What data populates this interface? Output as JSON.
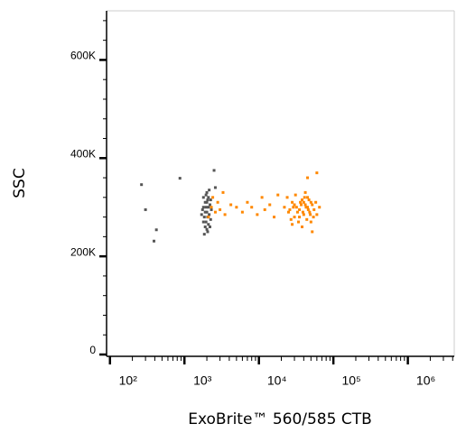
{
  "chart_data": {
    "type": "scatter",
    "xlabel": "ExoBrite™ 560/585 CTB",
    "ylabel": "SSC",
    "xscale": "log",
    "xlim": [
      90,
      4200000
    ],
    "ylim": [
      0,
      700000
    ],
    "xticks": [
      {
        "value": 100,
        "label": "10²"
      },
      {
        "value": 1000,
        "label": "10³"
      },
      {
        "value": 10000,
        "label": "10⁴"
      },
      {
        "value": 100000,
        "label": "10⁵"
      },
      {
        "value": 1000000,
        "label": "10⁶"
      }
    ],
    "xminorticks": [
      200,
      300,
      400,
      500,
      600,
      700,
      800,
      900,
      2000,
      3000,
      4000,
      5000,
      6000,
      7000,
      8000,
      9000,
      20000,
      30000,
      40000,
      50000,
      60000,
      70000,
      80000,
      90000,
      200000,
      300000,
      400000,
      500000,
      600000,
      700000,
      800000,
      900000,
      2000000,
      3000000,
      4000000
    ],
    "yticks": [
      {
        "value": 0,
        "label": "0"
      },
      {
        "value": 200000,
        "label": "200K"
      },
      {
        "value": 400000,
        "label": "400K"
      },
      {
        "value": 600000,
        "label": "600K"
      }
    ],
    "yminorticks": [
      40000,
      80000,
      120000,
      160000,
      240000,
      280000,
      320000,
      360000,
      440000,
      480000,
      520000,
      560000,
      640000,
      680000
    ],
    "series": [
      {
        "color": "#555555",
        "x": [
          1800,
          1900,
          2000,
          2100,
          1950,
          2050,
          1850,
          2200,
          1750,
          2000,
          2150,
          1900,
          2050,
          1800,
          2250,
          1950,
          2100,
          1850,
          2000,
          2300,
          1700,
          2150,
          1900,
          2050,
          2200,
          1950,
          2000,
          1800,
          2100,
          2250,
          265,
          300,
          420,
          390,
          870,
          2500,
          2600
        ],
        "values": [
          300000,
          310000,
          290000,
          320000,
          270000,
          250000,
          280000,
          305000,
          295000,
          330000,
          285000,
          260000,
          315000,
          320000,
          275000,
          300000,
          265000,
          245000,
          310000,
          295000,
          285000,
          335000,
          290000,
          280000,
          260000,
          325000,
          255000,
          270000,
          300000,
          315000,
          346000,
          295000,
          254000,
          231000,
          359000,
          375000,
          340000
        ]
      },
      {
        "color": "#ff8800",
        "x": [
          2300,
          2600,
          3000,
          3500,
          4200,
          5000,
          6000,
          7000,
          8000,
          9500,
          11000,
          12000,
          14000,
          16000,
          18000,
          2100,
          2400,
          2800,
          3300,
          22000,
          25000,
          28000,
          30000,
          32000,
          35000,
          38000,
          40000,
          42000,
          45000,
          48000,
          50000,
          55000,
          60000,
          65000,
          24000,
          27000,
          31000,
          34000,
          37000,
          41000,
          44000,
          47000,
          52000,
          58000,
          26000,
          29000,
          33000,
          36000,
          39000,
          43000,
          46000,
          49000,
          54000,
          30000,
          35000,
          40000,
          45000,
          50000,
          28000,
          38000,
          42000,
          60000,
          45000,
          52000
        ],
        "values": [
          300000,
          290000,
          295000,
          285000,
          305000,
          300000,
          290000,
          310000,
          300000,
          285000,
          320000,
          295000,
          305000,
          280000,
          325000,
          280000,
          320000,
          310000,
          330000,
          300000,
          290000,
          310000,
          280000,
          300000,
          295000,
          315000,
          285000,
          305000,
          300000,
          290000,
          310000,
          295000,
          285000,
          300000,
          320000,
          275000,
          325000,
          270000,
          305000,
          320000,
          275000,
          315000,
          305000,
          310000,
          295000,
          300000,
          290000,
          310000,
          290000,
          300000,
          295000,
          285000,
          280000,
          305000,
          280000,
          310000,
          320000,
          270000,
          265000,
          260000,
          330000,
          370000,
          360000,
          250000
        ]
      }
    ]
  }
}
